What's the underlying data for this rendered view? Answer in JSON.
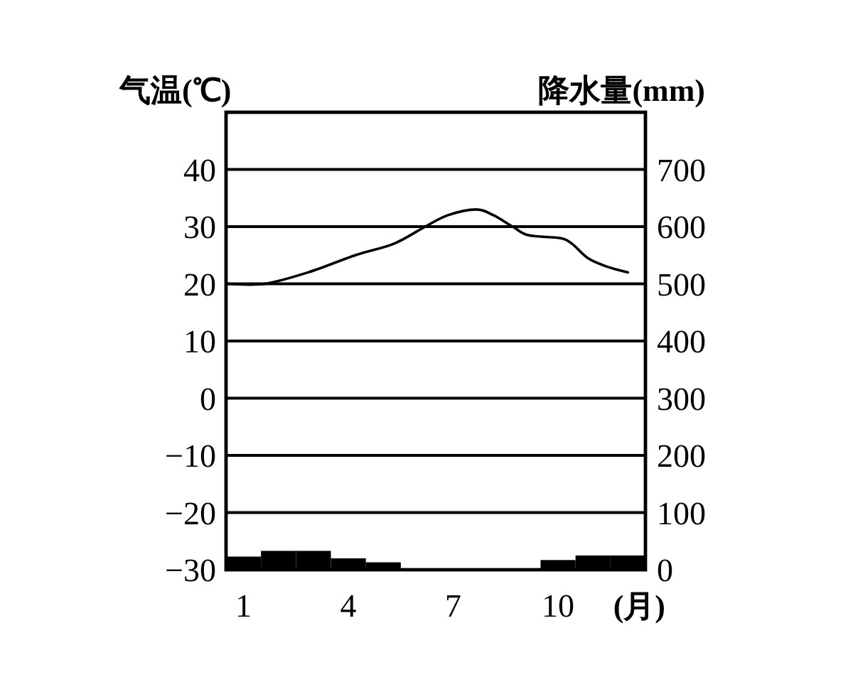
{
  "chart_data": {
    "type": "bar",
    "ylabel": "气温(℃)",
    "y2label": "降水量(mm)",
    "xlabel": "(月)",
    "xlim": [
      0.5,
      12.5
    ],
    "xticks": [
      1,
      4,
      7,
      10
    ],
    "ylim": [
      -30,
      50
    ],
    "yticks": [
      -30,
      -20,
      -10,
      0,
      10,
      20,
      30,
      40
    ],
    "y2lim": [
      0,
      800
    ],
    "y2ticks": [
      0,
      100,
      200,
      300,
      400,
      500,
      600,
      700
    ],
    "grid": "y",
    "series": [
      {
        "type": "line",
        "axis": "y",
        "color": "#000000",
        "x": [
          0.55,
          1.6,
          2.85,
          4.2,
          5.3,
          6.2,
          6.85,
          7.65,
          8.15,
          8.7,
          9.15,
          10.05,
          10.4,
          10.85,
          11.4,
          12.0
        ],
        "values": [
          20,
          20,
          22,
          25,
          27,
          30,
          32,
          33,
          32,
          30,
          28.5,
          28,
          27,
          24.5,
          23,
          22
        ]
      },
      {
        "axis": "y2",
        "color": "#000000",
        "x": [
          1,
          2,
          3,
          4,
          5,
          6,
          7,
          8,
          9,
          10,
          11,
          12
        ],
        "values": [
          23,
          33,
          33,
          20,
          13,
          0,
          0,
          0,
          0,
          17,
          25,
          25
        ]
      }
    ]
  }
}
